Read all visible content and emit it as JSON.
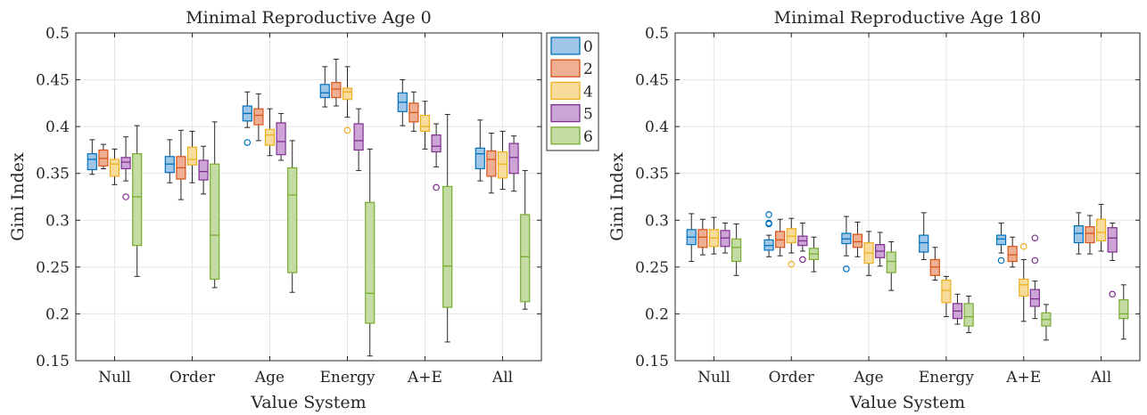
{
  "chart_data": [
    {
      "type": "box",
      "title": "Minimal Reproductive Age 0",
      "xlabel": "Value System",
      "ylabel": "Gini Index",
      "ylim": [
        0.15,
        0.5
      ],
      "yticks": [
        "0.15",
        "0.2",
        "0.25",
        "0.3",
        "0.35",
        "0.4",
        "0.45",
        "0.5"
      ],
      "grid": true,
      "legend_position": "outside-right",
      "categories": [
        "Null",
        "Order",
        "Age",
        "Energy",
        "A+E",
        "All"
      ],
      "series": [
        {
          "name": "0",
          "color": "#0072BD",
          "fill": "#9FC6E6",
          "boxes": [
            {
              "wlo": 0.349,
              "q1": 0.354,
              "med": 0.365,
              "q3": 0.371,
              "whi": 0.386,
              "outliers": []
            },
            {
              "wlo": 0.34,
              "q1": 0.351,
              "med": 0.36,
              "q3": 0.368,
              "whi": 0.386,
              "outliers": []
            },
            {
              "wlo": 0.399,
              "q1": 0.406,
              "med": 0.414,
              "q3": 0.422,
              "whi": 0.437,
              "outliers": [
                0.383
              ]
            },
            {
              "wlo": 0.421,
              "q1": 0.431,
              "med": 0.436,
              "q3": 0.445,
              "whi": 0.464,
              "outliers": []
            },
            {
              "wlo": 0.401,
              "q1": 0.416,
              "med": 0.426,
              "q3": 0.436,
              "whi": 0.45,
              "outliers": []
            },
            {
              "wlo": 0.342,
              "q1": 0.355,
              "med": 0.371,
              "q3": 0.377,
              "whi": 0.407,
              "outliers": []
            }
          ]
        },
        {
          "name": "2",
          "color": "#D95319",
          "fill": "#EFAF93",
          "boxes": [
            {
              "wlo": 0.355,
              "q1": 0.358,
              "med": 0.366,
              "q3": 0.375,
              "whi": 0.381,
              "outliers": []
            },
            {
              "wlo": 0.322,
              "q1": 0.344,
              "med": 0.356,
              "q3": 0.368,
              "whi": 0.396,
              "outliers": []
            },
            {
              "wlo": 0.385,
              "q1": 0.402,
              "med": 0.412,
              "q3": 0.419,
              "whi": 0.435,
              "outliers": []
            },
            {
              "wlo": 0.422,
              "q1": 0.431,
              "med": 0.44,
              "q3": 0.447,
              "whi": 0.472,
              "outliers": []
            },
            {
              "wlo": 0.395,
              "q1": 0.405,
              "med": 0.415,
              "q3": 0.425,
              "whi": 0.437,
              "outliers": []
            },
            {
              "wlo": 0.329,
              "q1": 0.347,
              "med": 0.365,
              "q3": 0.374,
              "whi": 0.393,
              "outliers": []
            }
          ]
        },
        {
          "name": "4",
          "color": "#EDB120",
          "fill": "#F8DC9B",
          "boxes": [
            {
              "wlo": 0.338,
              "q1": 0.347,
              "med": 0.36,
              "q3": 0.365,
              "whi": 0.376,
              "outliers": []
            },
            {
              "wlo": 0.34,
              "q1": 0.359,
              "med": 0.365,
              "q3": 0.378,
              "whi": 0.395,
              "outliers": []
            },
            {
              "wlo": 0.369,
              "q1": 0.38,
              "med": 0.391,
              "q3": 0.397,
              "whi": 0.419,
              "outliers": []
            },
            {
              "wlo": 0.41,
              "q1": 0.429,
              "med": 0.437,
              "q3": 0.441,
              "whi": 0.464,
              "outliers": [
                0.396
              ]
            },
            {
              "wlo": 0.376,
              "q1": 0.395,
              "med": 0.4,
              "q3": 0.412,
              "whi": 0.427,
              "outliers": []
            },
            {
              "wlo": 0.333,
              "q1": 0.345,
              "med": 0.36,
              "q3": 0.373,
              "whi": 0.395,
              "outliers": []
            }
          ]
        },
        {
          "name": "5",
          "color": "#7E2F8E",
          "fill": "#CDA4D6",
          "boxes": [
            {
              "wlo": 0.342,
              "q1": 0.355,
              "med": 0.362,
              "q3": 0.367,
              "whi": 0.389,
              "outliers": [
                0.325
              ]
            },
            {
              "wlo": 0.328,
              "q1": 0.343,
              "med": 0.352,
              "q3": 0.364,
              "whi": 0.379,
              "outliers": []
            },
            {
              "wlo": 0.364,
              "q1": 0.37,
              "med": 0.384,
              "q3": 0.404,
              "whi": 0.414,
              "outliers": []
            },
            {
              "wlo": 0.353,
              "q1": 0.375,
              "med": 0.385,
              "q3": 0.403,
              "whi": 0.419,
              "outliers": []
            },
            {
              "wlo": 0.357,
              "q1": 0.373,
              "med": 0.379,
              "q3": 0.391,
              "whi": 0.403,
              "outliers": [
                0.335
              ]
            },
            {
              "wlo": 0.331,
              "q1": 0.35,
              "med": 0.367,
              "q3": 0.382,
              "whi": 0.39,
              "outliers": []
            }
          ]
        },
        {
          "name": "6",
          "color": "#77AC30",
          "fill": "#C4DCA3",
          "boxes": [
            {
              "wlo": 0.24,
              "q1": 0.273,
              "med": 0.325,
              "q3": 0.371,
              "whi": 0.401,
              "outliers": []
            },
            {
              "wlo": 0.228,
              "q1": 0.237,
              "med": 0.284,
              "q3": 0.36,
              "whi": 0.405,
              "outliers": []
            },
            {
              "wlo": 0.223,
              "q1": 0.244,
              "med": 0.327,
              "q3": 0.356,
              "whi": 0.385,
              "outliers": []
            },
            {
              "wlo": 0.155,
              "q1": 0.19,
              "med": 0.222,
              "q3": 0.319,
              "whi": 0.376,
              "outliers": []
            },
            {
              "wlo": 0.17,
              "q1": 0.207,
              "med": 0.251,
              "q3": 0.336,
              "whi": 0.413,
              "outliers": []
            },
            {
              "wlo": 0.205,
              "q1": 0.213,
              "med": 0.261,
              "q3": 0.306,
              "whi": 0.353,
              "outliers": []
            }
          ]
        }
      ]
    },
    {
      "type": "box",
      "title": "Minimal Reproductive Age 180",
      "xlabel": "Value System",
      "ylabel": "Gini Index",
      "ylim": [
        0.15,
        0.5
      ],
      "yticks": [
        "0.15",
        "0.2",
        "0.25",
        "0.3",
        "0.35",
        "0.4",
        "0.45",
        "0.5"
      ],
      "grid": true,
      "categories": [
        "Null",
        "Order",
        "Age",
        "Energy",
        "A+E",
        "All"
      ],
      "series": [
        {
          "name": "0",
          "color": "#0072BD",
          "fill": "#9FC6E6",
          "boxes": [
            {
              "wlo": 0.256,
              "q1": 0.274,
              "med": 0.282,
              "q3": 0.29,
              "whi": 0.307,
              "outliers": []
            },
            {
              "wlo": 0.261,
              "q1": 0.268,
              "med": 0.273,
              "q3": 0.279,
              "whi": 0.284,
              "outliers": [
                0.296,
                0.297,
                0.306
              ]
            },
            {
              "wlo": 0.262,
              "q1": 0.275,
              "med": 0.28,
              "q3": 0.286,
              "whi": 0.304,
              "outliers": [
                0.248
              ]
            },
            {
              "wlo": 0.258,
              "q1": 0.266,
              "med": 0.276,
              "q3": 0.284,
              "whi": 0.308,
              "outliers": []
            },
            {
              "wlo": 0.265,
              "q1": 0.274,
              "med": 0.28,
              "q3": 0.284,
              "whi": 0.297,
              "outliers": [
                0.257
              ]
            },
            {
              "wlo": 0.264,
              "q1": 0.276,
              "med": 0.286,
              "q3": 0.294,
              "whi": 0.308,
              "outliers": []
            }
          ]
        },
        {
          "name": "2",
          "color": "#D95319",
          "fill": "#EFAF93",
          "boxes": [
            {
              "wlo": 0.263,
              "q1": 0.271,
              "med": 0.282,
              "q3": 0.29,
              "whi": 0.301,
              "outliers": []
            },
            {
              "wlo": 0.262,
              "q1": 0.271,
              "med": 0.279,
              "q3": 0.288,
              "whi": 0.301,
              "outliers": []
            },
            {
              "wlo": 0.261,
              "q1": 0.271,
              "med": 0.277,
              "q3": 0.285,
              "whi": 0.298,
              "outliers": []
            },
            {
              "wlo": 0.236,
              "q1": 0.241,
              "med": 0.25,
              "q3": 0.258,
              "whi": 0.271,
              "outliers": []
            },
            {
              "wlo": 0.25,
              "q1": 0.256,
              "med": 0.263,
              "q3": 0.272,
              "whi": 0.282,
              "outliers": []
            },
            {
              "wlo": 0.264,
              "q1": 0.276,
              "med": 0.286,
              "q3": 0.293,
              "whi": 0.305,
              "outliers": []
            }
          ]
        },
        {
          "name": "4",
          "color": "#EDB120",
          "fill": "#F8DC9B",
          "boxes": [
            {
              "wlo": 0.264,
              "q1": 0.272,
              "med": 0.281,
              "q3": 0.29,
              "whi": 0.303,
              "outliers": []
            },
            {
              "wlo": 0.265,
              "q1": 0.276,
              "med": 0.283,
              "q3": 0.291,
              "whi": 0.302,
              "outliers": [
                0.253
              ]
            },
            {
              "wlo": 0.241,
              "q1": 0.254,
              "med": 0.265,
              "q3": 0.276,
              "whi": 0.288,
              "outliers": []
            },
            {
              "wlo": 0.197,
              "q1": 0.212,
              "med": 0.225,
              "q3": 0.236,
              "whi": 0.24,
              "outliers": []
            },
            {
              "wlo": 0.192,
              "q1": 0.219,
              "med": 0.231,
              "q3": 0.237,
              "whi": 0.258,
              "outliers": [
                0.272
              ]
            },
            {
              "wlo": 0.267,
              "q1": 0.278,
              "med": 0.287,
              "q3": 0.301,
              "whi": 0.317,
              "outliers": []
            }
          ]
        },
        {
          "name": "5",
          "color": "#7E2F8E",
          "fill": "#CDA4D6",
          "boxes": [
            {
              "wlo": 0.265,
              "q1": 0.272,
              "med": 0.281,
              "q3": 0.289,
              "whi": 0.297,
              "outliers": []
            },
            {
              "wlo": 0.267,
              "q1": 0.273,
              "med": 0.278,
              "q3": 0.283,
              "whi": 0.297,
              "outliers": [
                0.258
              ]
            },
            {
              "wlo": 0.251,
              "q1": 0.26,
              "med": 0.267,
              "q3": 0.274,
              "whi": 0.287,
              "outliers": []
            },
            {
              "wlo": 0.189,
              "q1": 0.195,
              "med": 0.203,
              "q3": 0.211,
              "whi": 0.221,
              "outliers": []
            },
            {
              "wlo": 0.195,
              "q1": 0.208,
              "med": 0.216,
              "q3": 0.226,
              "whi": 0.235,
              "outliers": [
                0.257,
                0.281
              ]
            },
            {
              "wlo": 0.257,
              "q1": 0.266,
              "med": 0.281,
              "q3": 0.292,
              "whi": 0.297,
              "outliers": [
                0.221
              ]
            }
          ]
        },
        {
          "name": "6",
          "color": "#77AC30",
          "fill": "#C4DCA3",
          "boxes": [
            {
              "wlo": 0.241,
              "q1": 0.256,
              "med": 0.271,
              "q3": 0.28,
              "whi": 0.296,
              "outliers": []
            },
            {
              "wlo": 0.245,
              "q1": 0.258,
              "med": 0.264,
              "q3": 0.27,
              "whi": 0.282,
              "outliers": []
            },
            {
              "wlo": 0.225,
              "q1": 0.244,
              "med": 0.256,
              "q3": 0.266,
              "whi": 0.277,
              "outliers": []
            },
            {
              "wlo": 0.18,
              "q1": 0.187,
              "med": 0.197,
              "q3": 0.211,
              "whi": 0.219,
              "outliers": []
            },
            {
              "wlo": 0.172,
              "q1": 0.187,
              "med": 0.194,
              "q3": 0.201,
              "whi": 0.21,
              "outliers": []
            },
            {
              "wlo": 0.173,
              "q1": 0.195,
              "med": 0.2,
              "q3": 0.215,
              "whi": 0.231,
              "outliers": []
            }
          ]
        }
      ]
    }
  ]
}
